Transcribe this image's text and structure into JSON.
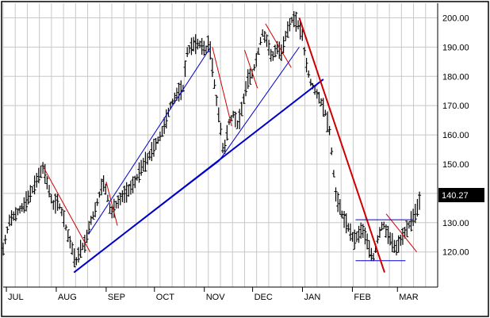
{
  "chart_data": {
    "type": "ohlc",
    "title": "",
    "xlabel": "",
    "ylabel": "",
    "ylim": [
      108,
      205
    ],
    "xlim": [
      0,
      270
    ],
    "grid": true,
    "y_axis_position": "right",
    "y_ticks": [
      "120.00",
      "130.00",
      "140.00",
      "150.00",
      "160.00",
      "170.00",
      "180.00",
      "190.00",
      "200.00"
    ],
    "x_ticks": [
      {
        "label": "JUL",
        "day": 2
      },
      {
        "label": "AUG",
        "day": 33
      },
      {
        "label": "SEP",
        "day": 64
      },
      {
        "label": "OCT",
        "day": 94
      },
      {
        "label": "NOV",
        "day": 125
      },
      {
        "label": "DEC",
        "day": 155
      },
      {
        "label": "JAN",
        "day": 186
      },
      {
        "label": "FEB",
        "day": 217
      },
      {
        "label": "MAR",
        "day": 245
      }
    ],
    "last_price": "140.27",
    "colors": {
      "price_bars": "#000000",
      "support_lines": "#0000cc",
      "resistance_lines": "#cc0000",
      "grid": "#c8c8c8",
      "last_price_box": "#000000"
    },
    "price_path": [
      [
        0,
        121
      ],
      [
        4,
        131
      ],
      [
        8,
        133
      ],
      [
        13,
        136
      ],
      [
        18,
        141
      ],
      [
        22,
        146
      ],
      [
        25,
        149
      ],
      [
        28,
        142
      ],
      [
        31,
        136
      ],
      [
        34,
        137
      ],
      [
        37,
        133
      ],
      [
        40,
        126
      ],
      [
        43,
        121
      ],
      [
        45,
        116
      ],
      [
        48,
        121
      ],
      [
        51,
        123
      ],
      [
        54,
        130
      ],
      [
        57,
        134
      ],
      [
        59,
        138
      ],
      [
        62,
        144
      ],
      [
        64,
        141
      ],
      [
        67,
        133
      ],
      [
        70,
        136
      ],
      [
        74,
        139
      ],
      [
        78,
        141
      ],
      [
        82,
        144
      ],
      [
        86,
        149
      ],
      [
        90,
        152
      ],
      [
        94,
        156
      ],
      [
        98,
        160
      ],
      [
        100,
        163
      ],
      [
        104,
        170
      ],
      [
        108,
        174
      ],
      [
        112,
        176
      ],
      [
        114,
        188
      ],
      [
        118,
        191
      ],
      [
        122,
        191
      ],
      [
        126,
        189
      ],
      [
        128,
        192
      ],
      [
        130,
        183
      ],
      [
        133,
        170
      ],
      [
        135,
        163
      ],
      [
        137,
        153
      ],
      [
        140,
        164
      ],
      [
        143,
        167
      ],
      [
        146,
        163
      ],
      [
        149,
        171
      ],
      [
        152,
        179
      ],
      [
        155,
        181
      ],
      [
        158,
        187
      ],
      [
        161,
        195
      ],
      [
        164,
        192
      ],
      [
        167,
        186
      ],
      [
        170,
        190
      ],
      [
        173,
        188
      ],
      [
        176,
        195
      ],
      [
        180,
        200
      ],
      [
        183,
        198
      ],
      [
        186,
        194
      ],
      [
        188,
        185
      ],
      [
        191,
        178
      ],
      [
        194,
        175
      ],
      [
        197,
        172
      ],
      [
        200,
        168
      ],
      [
        203,
        161
      ],
      [
        205,
        149
      ],
      [
        207,
        138
      ],
      [
        209,
        136
      ],
      [
        211,
        132
      ],
      [
        214,
        129
      ],
      [
        218,
        124
      ],
      [
        221,
        126
      ],
      [
        223,
        128
      ],
      [
        226,
        124
      ],
      [
        228,
        120
      ],
      [
        230,
        118
      ],
      [
        233,
        125
      ],
      [
        236,
        130
      ],
      [
        238,
        127
      ],
      [
        241,
        124
      ],
      [
        244,
        121
      ],
      [
        247,
        124
      ],
      [
        250,
        127
      ],
      [
        253,
        130
      ],
      [
        256,
        133
      ],
      [
        258,
        136
      ],
      [
        260,
        140.27
      ]
    ],
    "support_lines": [
      {
        "from": [
          44,
          113
        ],
        "to": [
          134,
          151
        ]
      },
      {
        "from": [
          44,
          113
        ],
        "to": [
          199,
          179
        ]
      },
      {
        "from": [
          53,
          126
        ],
        "to": [
          129,
          190
        ]
      },
      {
        "from": [
          134,
          151
        ],
        "to": [
          184,
          190
        ]
      },
      {
        "from": [
          219,
          117
        ],
        "to": [
          250,
          117
        ]
      }
    ],
    "resistance_lines": [
      {
        "from": [
          25,
          149
        ],
        "to": [
          54,
          120
        ]
      },
      {
        "from": [
          64,
          144
        ],
        "to": [
          71,
          129
        ]
      },
      {
        "from": [
          130,
          190
        ],
        "to": [
          142,
          163
        ]
      },
      {
        "from": [
          150,
          189
        ],
        "to": [
          158,
          176
        ]
      },
      {
        "from": [
          163,
          198
        ],
        "to": [
          179,
          183
        ]
      },
      {
        "from": [
          184,
          200
        ],
        "to": [
          237,
          113
        ]
      },
      {
        "from": [
          238,
          133
        ],
        "to": [
          257,
          120
        ]
      },
      {
        "from": [
          219,
          131
        ],
        "to": [
          255,
          131
        ]
      }
    ]
  }
}
